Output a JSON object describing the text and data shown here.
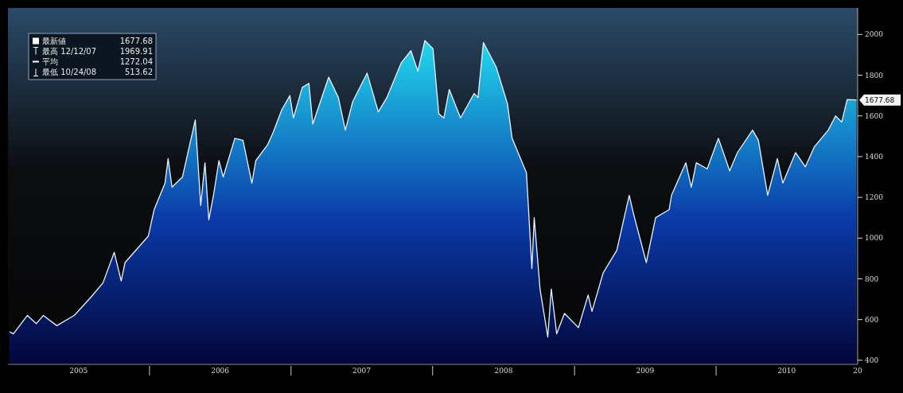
{
  "chart_data": {
    "type": "area",
    "x": [
      "2005-01-05",
      "2005-01-15",
      "2005-02-20",
      "2005-03-15",
      "2005-04-02",
      "2005-05-07",
      "2005-06-21",
      "2005-08-03",
      "2005-09-03",
      "2005-10-02",
      "2005-10-20",
      "2005-10-30",
      "2005-12-29",
      "2006-01-13",
      "2006-02-10",
      "2006-02-18",
      "2006-02-28",
      "2006-03-27",
      "2006-04-29",
      "2006-05-13",
      "2006-05-24",
      "2006-06-03",
      "2006-06-15",
      "2006-06-29",
      "2006-07-10",
      "2006-08-09",
      "2006-08-30",
      "2006-09-22",
      "2006-10-02",
      "2006-11-02",
      "2006-11-16",
      "2006-12-08",
      "2006-12-29",
      "2007-01-07",
      "2007-01-30",
      "2007-02-16",
      "2007-02-26",
      "2007-04-08",
      "2007-05-03",
      "2007-05-21",
      "2007-06-09",
      "2007-07-16",
      "2007-08-14",
      "2007-09-05",
      "2007-10-12",
      "2007-11-06",
      "2007-11-24",
      "2007-12-12",
      "2008-01-02",
      "2008-01-17",
      "2008-01-30",
      "2008-02-13",
      "2008-03-13",
      "2008-04-17",
      "2008-04-27",
      "2008-05-11",
      "2008-06-13",
      "2008-07-12",
      "2008-07-24",
      "2008-08-30",
      "2008-09-13",
      "2008-09-19",
      "2008-10-04",
      "2008-10-24",
      "2008-11-02",
      "2008-11-16",
      "2008-12-06",
      "2009-01-11",
      "2009-02-05",
      "2009-02-15",
      "2009-03-16",
      "2009-04-20",
      "2009-05-22",
      "2009-06-02",
      "2009-07-05",
      "2009-07-29",
      "2009-09-02",
      "2009-09-08",
      "2009-10-15",
      "2009-10-29",
      "2009-11-11",
      "2009-12-09",
      "2010-01-07",
      "2010-02-05",
      "2010-02-25",
      "2010-04-05",
      "2010-04-20",
      "2010-05-14",
      "2010-06-08",
      "2010-06-22",
      "2010-07-25",
      "2010-08-19",
      "2010-09-12",
      "2010-10-17",
      "2010-11-05",
      "2010-11-21",
      "2010-12-05",
      "2010-12-29"
    ],
    "series": [
      {
        "color": "#22d8ee",
        "values": [
          540,
          530,
          620,
          580,
          620,
          570,
          620,
          710,
          780,
          930,
          790,
          880,
          1010,
          1140,
          1270,
          1390,
          1250,
          1300,
          1580,
          1160,
          1370,
          1090,
          1210,
          1380,
          1300,
          1490,
          1480,
          1270,
          1380,
          1460,
          1520,
          1630,
          1700,
          1590,
          1740,
          1760,
          1560,
          1790,
          1690,
          1530,
          1670,
          1810,
          1620,
          1690,
          1860,
          1920,
          1820,
          1970,
          1930,
          1610,
          1590,
          1730,
          1590,
          1710,
          1690,
          1960,
          1840,
          1660,
          1490,
          1320,
          850,
          1100,
          750,
          514,
          750,
          530,
          630,
          560,
          720,
          640,
          830,
          940,
          1210,
          1120,
          880,
          1100,
          1140,
          1210,
          1370,
          1250,
          1370,
          1340,
          1490,
          1330,
          1420,
          1530,
          1480,
          1210,
          1390,
          1270,
          1420,
          1350,
          1450,
          1530,
          1600,
          1570,
          1680,
          1678
        ]
      }
    ],
    "xlim": [
      "2005-01-01",
      "2011-01-01"
    ],
    "xticks": [
      {
        "value": "2005-07-02",
        "label": "2005"
      },
      {
        "value": "2006-01-01",
        "label": null
      },
      {
        "value": "2006-07-02",
        "label": "2006"
      },
      {
        "value": "2007-01-01",
        "label": null
      },
      {
        "value": "2007-07-02",
        "label": "2007"
      },
      {
        "value": "2008-01-01",
        "label": null
      },
      {
        "value": "2008-07-02",
        "label": "2008"
      },
      {
        "value": "2009-01-01",
        "label": null
      },
      {
        "value": "2009-07-02",
        "label": "2009"
      },
      {
        "value": "2010-01-01",
        "label": null
      },
      {
        "value": "2010-07-02",
        "label": "2010"
      },
      {
        "value": "2011-01-01",
        "label": "20"
      }
    ],
    "ylim": [
      380,
      2130
    ],
    "yticks": [
      400,
      600,
      800,
      1000,
      1200,
      1400,
      1600,
      1800,
      2000
    ],
    "annotations": [
      "最新値 1677.68",
      "最高 12/12/07 1969.91",
      "平均 1272.04",
      "最低 10/24/08 513.62",
      "1677.68"
    ]
  }
}
